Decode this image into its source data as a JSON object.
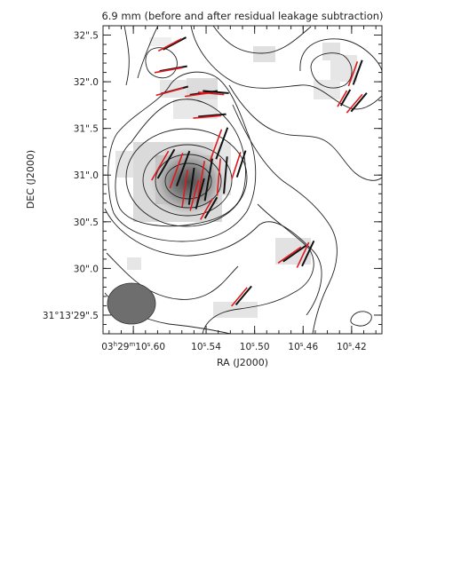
{
  "chart_data": {
    "type": "contour",
    "title": "6.9 mm (before and after residual leakage subtraction)",
    "xlabel": "RA (J2000)",
    "ylabel": "DEC (J2000)",
    "xlim_seconds": [
      10.625,
      10.395
    ],
    "ylim_arcsec": [
      29.3,
      32.6
    ],
    "x_ticks": [
      {
        "value": 10.6,
        "label_main": "03",
        "sup1": "h",
        "mid": "29",
        "sup2": "m",
        "tail": "10",
        "sup3": "s",
        "frac": ".60"
      },
      {
        "value": 10.54,
        "label_main": "10",
        "sup3": "s",
        "frac": ".54"
      },
      {
        "value": 10.5,
        "label_main": "10",
        "sup3": "s",
        "frac": ".50"
      },
      {
        "value": 10.46,
        "label_main": "10",
        "sup3": "s",
        "frac": ".46"
      },
      {
        "value": 10.42,
        "label_main": "10",
        "sup3": "s",
        "frac": ".42"
      }
    ],
    "y_ticks": [
      {
        "value": 32.5,
        "label": "32\".5"
      },
      {
        "value": 32.0,
        "label": "32\".0"
      },
      {
        "value": 31.5,
        "label": "31\".5"
      },
      {
        "value": 31.0,
        "label": "31\".0"
      },
      {
        "value": 30.5,
        "label": "30\".5"
      },
      {
        "value": 30.0,
        "label": "30\".0"
      },
      {
        "value": 29.5,
        "label": "31°13'29\".5"
      }
    ],
    "peak": {
      "ra": 10.543,
      "dec": 30.93
    },
    "beam": {
      "ra": 10.594,
      "dec": 29.56,
      "major_arcsec": 0.46,
      "minor_arcsec": 0.56
    },
    "vectors": [
      {
        "ra": 10.566,
        "dec": 32.41,
        "pa": 62,
        "len_arcsec": 0.28
      },
      {
        "ra": 10.567,
        "dec": 32.14,
        "pa": 80,
        "len_arcsec": 0.3
      },
      {
        "ra": 10.566,
        "dec": 31.91,
        "pa": 75,
        "len_arcsec": 0.3
      },
      {
        "ra": 10.542,
        "dec": 31.88,
        "pa": 82,
        "len_arcsec": 0.3
      },
      {
        "ra": 10.532,
        "dec": 31.89,
        "pa": 95,
        "len_arcsec": 0.28
      },
      {
        "ra": 10.535,
        "dec": 31.64,
        "pa": 85,
        "len_arcsec": 0.3
      },
      {
        "ra": 10.527,
        "dec": 31.34,
        "pa": 20,
        "len_arcsec": 0.36
      },
      {
        "ra": 10.573,
        "dec": 31.12,
        "pa": 30,
        "len_arcsec": 0.36
      },
      {
        "ra": 10.559,
        "dec": 31.07,
        "pa": 20,
        "len_arcsec": 0.4
      },
      {
        "ra": 10.552,
        "dec": 30.88,
        "pa": 8,
        "len_arcsec": 0.4
      },
      {
        "ra": 10.538,
        "dec": 30.95,
        "pa": 10,
        "len_arcsec": 0.46
      },
      {
        "ra": 10.524,
        "dec": 31.0,
        "pa": 5,
        "len_arcsec": 0.4
      },
      {
        "ra": 10.545,
        "dec": 30.8,
        "pa": 15,
        "len_arcsec": 0.34
      },
      {
        "ra": 10.536,
        "dec": 30.65,
        "pa": 30,
        "len_arcsec": 0.26
      },
      {
        "ra": 10.511,
        "dec": 31.12,
        "pa": 18,
        "len_arcsec": 0.3
      },
      {
        "ra": 10.467,
        "dec": 30.16,
        "pa": 55,
        "len_arcsec": 0.3
      },
      {
        "ra": 10.456,
        "dec": 30.16,
        "pa": 25,
        "len_arcsec": 0.3
      },
      {
        "ra": 10.509,
        "dec": 29.71,
        "pa": 40,
        "len_arcsec": 0.26
      },
      {
        "ra": 10.415,
        "dec": 32.1,
        "pa": 20,
        "len_arcsec": 0.28
      },
      {
        "ra": 10.414,
        "dec": 31.78,
        "pa": 40,
        "len_arcsec": 0.26
      },
      {
        "ra": 10.425,
        "dec": 31.83,
        "pa": 30,
        "len_arcsec": 0.2
      }
    ]
  }
}
